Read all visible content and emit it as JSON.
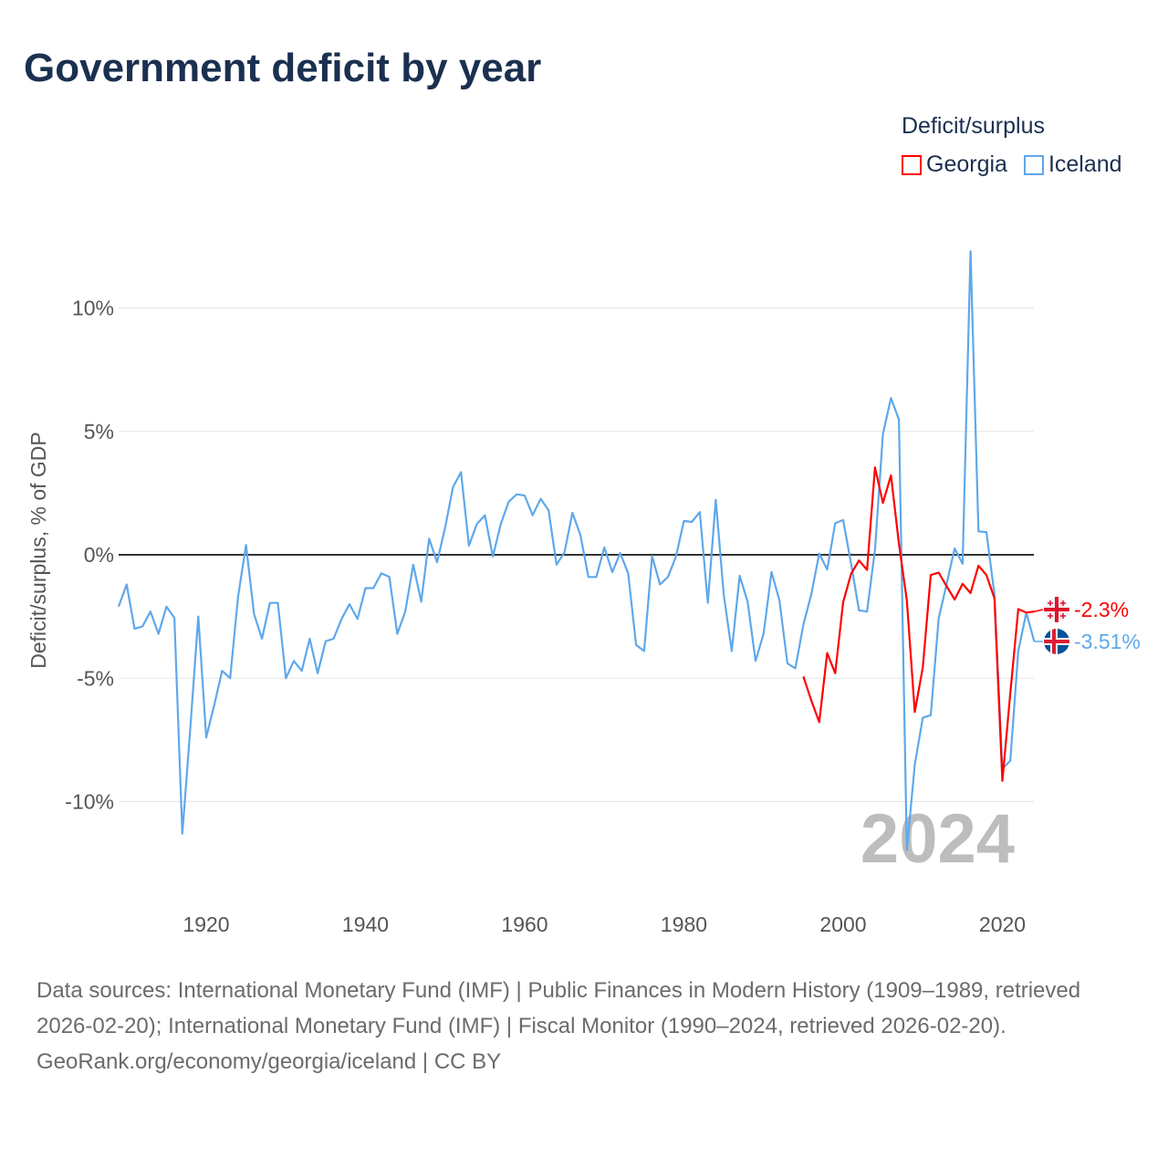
{
  "title": "Government deficit by year",
  "legend": {
    "title": "Deficit/surplus",
    "items": [
      {
        "label": "Georgia",
        "color": "#ff0000"
      },
      {
        "label": "Iceland",
        "color": "#5fa8ea"
      }
    ]
  },
  "footer": {
    "sources": "Data sources: International Monetary Fund (IMF) | Public Finances in Modern History (1909–1989, retrieved 2026-02-20); International Monetary Fund (IMF) | Fiscal Monitor (1990–2024, retrieved 2026-02-20).",
    "link": "GeoRank.org/economy/georgia/iceland",
    "license": " | CC BY"
  },
  "chart_data": {
    "type": "line",
    "title": "Government deficit by year",
    "xlabel": "",
    "ylabel": "Deficit/surplus, % of GDP",
    "xlim": [
      1909,
      2024
    ],
    "ylim": [
      -12.5,
      12.5
    ],
    "x_ticks": [
      1920,
      1940,
      1960,
      1980,
      2000,
      2020
    ],
    "x_tick_labels": [
      "1920",
      "1940",
      "1960",
      "1980",
      "2000",
      "2020"
    ],
    "y_ticks": [
      10,
      5,
      0,
      -5,
      -10
    ],
    "y_tick_labels": [
      "10%",
      "5%",
      "0%",
      "-5%",
      "-10%"
    ],
    "grid": true,
    "legend_position": "top-right",
    "year_watermark": "2024",
    "series": [
      {
        "name": "Georgia",
        "color": "#ff0000",
        "start_year": 1995,
        "values": [
          -4.93,
          -5.9,
          -6.78,
          -3.98,
          -4.8,
          -1.92,
          -0.77,
          -0.23,
          -0.61,
          3.54,
          2.1,
          3.22,
          0.46,
          -1.84,
          -6.37,
          -4.56,
          -0.82,
          -0.72,
          -1.27,
          -1.81,
          -1.18,
          -1.55,
          -0.44,
          -0.82,
          -1.76,
          -9.16,
          -5.6,
          -2.2,
          -2.34,
          -2.3
        ],
        "end_label": "-2.3%",
        "flag": "georgia-flag"
      },
      {
        "name": "Iceland",
        "color": "#5fa8ea",
        "start_year": 1909,
        "values": [
          -2.1,
          -1.2,
          -3.0,
          -2.9,
          -2.3,
          -3.2,
          -2.1,
          -2.55,
          -11.3,
          -7.0,
          -2.5,
          -7.4,
          -6.1,
          -4.7,
          -5.0,
          -1.7,
          0.4,
          -2.4,
          -3.4,
          -1.95,
          -1.95,
          -5.0,
          -4.3,
          -4.7,
          -3.4,
          -4.8,
          -3.5,
          -3.4,
          -2.6,
          -2.0,
          -2.6,
          -1.35,
          -1.35,
          -0.75,
          -0.9,
          -3.2,
          -2.3,
          -0.4,
          -1.9,
          0.65,
          -0.3,
          1.1,
          2.75,
          3.35,
          0.37,
          1.25,
          1.6,
          -0.07,
          1.25,
          2.15,
          2.45,
          2.4,
          1.6,
          2.27,
          1.8,
          -0.4,
          0.1,
          1.7,
          0.8,
          -0.9,
          -0.9,
          0.3,
          -0.7,
          0.07,
          -0.75,
          -3.65,
          -3.9,
          -0.05,
          -1.2,
          -0.9,
          -0.07,
          1.37,
          1.33,
          1.73,
          -1.95,
          2.23,
          -1.6,
          -3.9,
          -0.85,
          -1.9,
          -4.3,
          -3.2,
          -0.7,
          -1.85,
          -4.4,
          -4.6,
          -2.83,
          -1.6,
          0.05,
          -0.6,
          1.28,
          1.41,
          -0.36,
          -2.25,
          -2.3,
          0.21,
          4.9,
          6.35,
          5.48,
          -11.96,
          -8.5,
          -6.6,
          -6.5,
          -2.58,
          -1.18,
          0.26,
          -0.36,
          12.3,
          0.95,
          0.92,
          -1.6,
          -8.67,
          -8.34,
          -3.9,
          -2.34,
          -3.51
        ],
        "end_label": "-3.51%",
        "flag": "iceland-flag"
      }
    ]
  }
}
